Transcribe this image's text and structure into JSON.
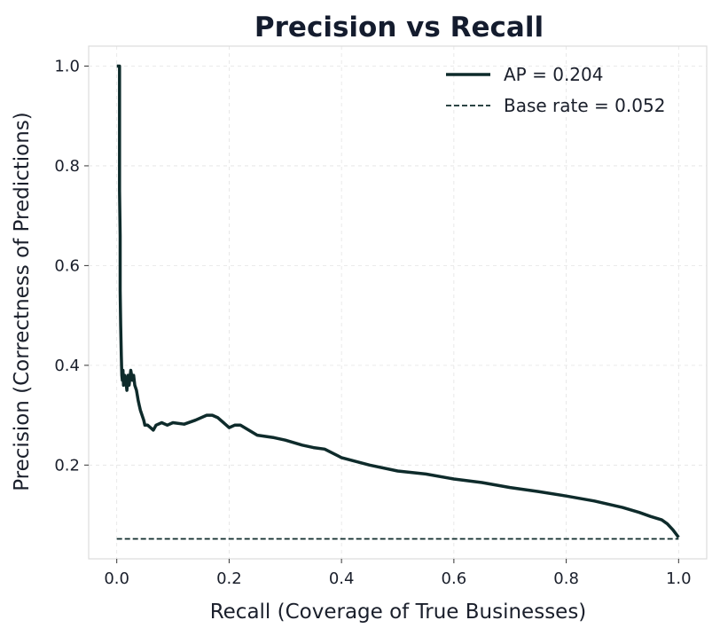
{
  "chart_data": {
    "type": "line",
    "title": "Precision vs Recall",
    "xlabel": "Recall (Coverage of True Businesses)",
    "ylabel": "Precision (Correctness of Predictions)",
    "xlim": [
      -0.05,
      1.05
    ],
    "ylim": [
      0.012,
      1.04
    ],
    "x_ticks": [
      0.0,
      0.2,
      0.4,
      0.6,
      0.8,
      1.0
    ],
    "x_tick_labels": [
      "0.0",
      "0.2",
      "0.4",
      "0.6",
      "0.8",
      "1.0"
    ],
    "y_ticks": [
      0.2,
      0.4,
      0.6,
      0.8,
      1.0
    ],
    "y_tick_labels": [
      "0.2",
      "0.4",
      "0.6",
      "0.8",
      "1.0"
    ],
    "grid": true,
    "legend_position": "top-right",
    "colors": {
      "curve": "#0e2b2b",
      "baseline": "#0e2b2b"
    },
    "series": [
      {
        "name": "AP = 0.204",
        "style": "solid",
        "x": [
          0.0,
          0.005,
          0.005,
          0.006,
          0.006,
          0.007,
          0.008,
          0.009,
          0.01,
          0.011,
          0.012,
          0.014,
          0.016,
          0.018,
          0.02,
          0.022,
          0.025,
          0.028,
          0.03,
          0.032,
          0.035,
          0.038,
          0.04,
          0.042,
          0.045,
          0.048,
          0.05,
          0.055,
          0.06,
          0.065,
          0.07,
          0.08,
          0.09,
          0.1,
          0.12,
          0.14,
          0.16,
          0.17,
          0.18,
          0.19,
          0.2,
          0.21,
          0.22,
          0.25,
          0.28,
          0.3,
          0.33,
          0.35,
          0.37,
          0.4,
          0.45,
          0.5,
          0.55,
          0.6,
          0.65,
          0.7,
          0.75,
          0.8,
          0.85,
          0.9,
          0.93,
          0.95,
          0.97,
          0.98,
          0.99,
          1.0
        ],
        "y": [
          1.0,
          1.0,
          0.75,
          0.66,
          0.55,
          0.48,
          0.42,
          0.38,
          0.37,
          0.39,
          0.36,
          0.38,
          0.37,
          0.35,
          0.38,
          0.36,
          0.39,
          0.37,
          0.38,
          0.36,
          0.35,
          0.33,
          0.32,
          0.31,
          0.3,
          0.29,
          0.28,
          0.28,
          0.275,
          0.27,
          0.28,
          0.285,
          0.28,
          0.285,
          0.282,
          0.29,
          0.3,
          0.3,
          0.295,
          0.285,
          0.275,
          0.28,
          0.28,
          0.26,
          0.255,
          0.25,
          0.24,
          0.235,
          0.232,
          0.215,
          0.2,
          0.188,
          0.182,
          0.172,
          0.165,
          0.155,
          0.147,
          0.138,
          0.128,
          0.115,
          0.105,
          0.097,
          0.09,
          0.082,
          0.07,
          0.055
        ]
      },
      {
        "name": "Base rate = 0.052",
        "style": "dashed",
        "x": [
          0.0,
          1.0
        ],
        "y": [
          0.052,
          0.052
        ]
      }
    ]
  }
}
